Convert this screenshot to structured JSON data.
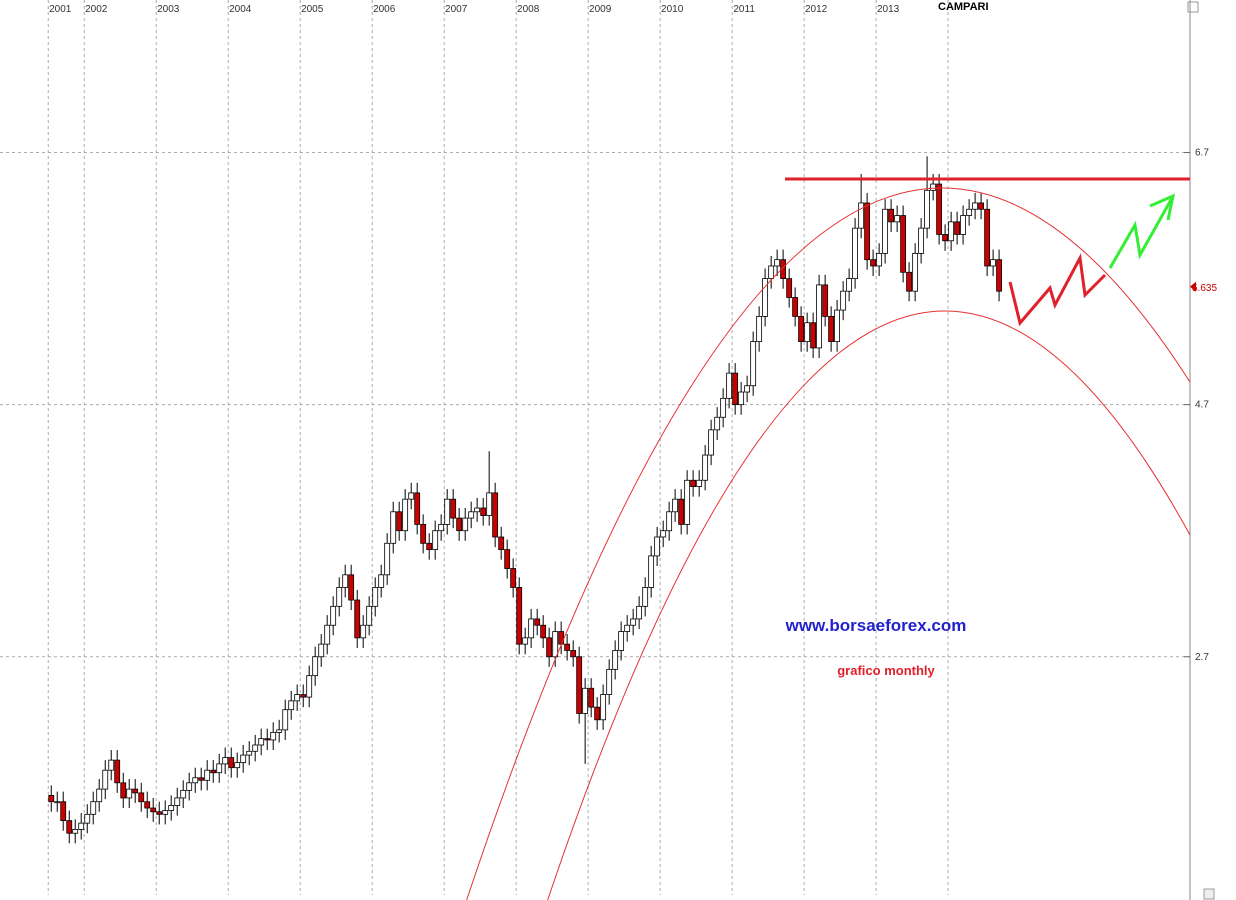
{
  "chart_data": {
    "type": "candlestick",
    "title": "CAMPARI",
    "annotations": [
      "www.borsaeforex.com",
      "grafico monthly"
    ],
    "xlim": [
      2000.83,
      2017.36
    ],
    "ylim": [
      0.81,
      7.91
    ],
    "xticks": [
      {
        "value": 2001.5,
        "label": "2001"
      },
      2002,
      2003,
      2004,
      2005,
      2006,
      2007,
      2008,
      2009,
      2010,
      2011,
      2012,
      2013
    ],
    "yticks": [
      2.7,
      4.7,
      6.7
    ],
    "last_price": 5.635,
    "grid": true,
    "up_color": "#ffffff",
    "down_color": "#cc0000",
    "x": [
      2001.542,
      2001.625,
      2001.708,
      2001.792,
      2001.875,
      2001.958,
      2002.042,
      2002.125,
      2002.208,
      2002.292,
      2002.375,
      2002.458,
      2002.542,
      2002.625,
      2002.708,
      2002.792,
      2002.875,
      2002.958,
      2003.042,
      2003.125,
      2003.208,
      2003.292,
      2003.375,
      2003.458,
      2003.542,
      2003.625,
      2003.708,
      2003.792,
      2003.875,
      2003.958,
      2004.042,
      2004.125,
      2004.208,
      2004.292,
      2004.375,
      2004.458,
      2004.542,
      2004.625,
      2004.708,
      2004.792,
      2004.875,
      2004.958,
      2005.042,
      2005.125,
      2005.208,
      2005.292,
      2005.375,
      2005.458,
      2005.542,
      2005.625,
      2005.708,
      2005.792,
      2005.875,
      2005.958,
      2006.042,
      2006.125,
      2006.208,
      2006.292,
      2006.375,
      2006.458,
      2006.542,
      2006.625,
      2006.708,
      2006.792,
      2006.875,
      2006.958,
      2007.042,
      2007.125,
      2007.208,
      2007.292,
      2007.375,
      2007.458,
      2007.542,
      2007.625,
      2007.708,
      2007.792,
      2007.875,
      2007.958,
      2008.042,
      2008.125,
      2008.208,
      2008.292,
      2008.375,
      2008.458,
      2008.542,
      2008.625,
      2008.708,
      2008.792,
      2008.875,
      2008.958,
      2009.042,
      2009.125,
      2009.208,
      2009.292,
      2009.375,
      2009.458,
      2009.542,
      2009.625,
      2009.708,
      2009.792,
      2009.875,
      2009.958,
      2010.042,
      2010.125,
      2010.208,
      2010.292,
      2010.375,
      2010.458,
      2010.542,
      2010.625,
      2010.708,
      2010.792,
      2010.875,
      2010.958,
      2011.042,
      2011.125,
      2011.208,
      2011.292,
      2011.375,
      2011.458,
      2011.542,
      2011.625,
      2011.708,
      2011.792,
      2011.875,
      2011.958,
      2012.042,
      2012.125,
      2012.208,
      2012.292,
      2012.375,
      2012.458,
      2012.542,
      2012.625,
      2012.708,
      2012.792,
      2012.875,
      2012.958,
      2013.042,
      2013.125,
      2013.208,
      2013.292,
      2013.375,
      2013.458,
      2013.542,
      2013.625,
      2013.708,
      2013.792,
      2013.875,
      2013.958,
      2014.042,
      2014.125,
      2014.208,
      2014.292,
      2014.375,
      2014.458,
      2014.542,
      2014.625,
      2014.708
    ],
    "open": [
      1.6,
      1.55,
      1.55,
      1.4,
      1.3,
      1.33,
      1.38,
      1.45,
      1.55,
      1.65,
      1.8,
      1.88,
      1.7,
      1.58,
      1.65,
      1.62,
      1.55,
      1.5,
      1.47,
      1.45,
      1.48,
      1.52,
      1.58,
      1.64,
      1.7,
      1.74,
      1.72,
      1.8,
      1.78,
      1.85,
      1.9,
      1.82,
      1.86,
      1.92,
      1.95,
      2.0,
      2.05,
      2.04,
      2.1,
      2.12,
      2.28,
      2.35,
      2.4,
      2.38,
      2.55,
      2.7,
      2.8,
      2.95,
      3.1,
      3.25,
      3.35,
      3.15,
      2.85,
      2.95,
      3.1,
      3.25,
      3.35,
      3.6,
      3.85,
      3.7,
      3.95,
      4.0,
      3.75,
      3.6,
      3.55,
      3.7,
      3.75,
      3.95,
      3.8,
      3.7,
      3.8,
      3.85,
      3.88,
      3.82,
      4.0,
      3.65,
      3.55,
      3.4,
      3.25,
      2.8,
      2.85,
      3.0,
      2.95,
      2.85,
      2.7,
      2.9,
      2.8,
      2.75,
      2.7,
      2.25,
      2.45,
      2.3,
      2.2,
      2.4,
      2.6,
      2.75,
      2.9,
      2.95,
      3.0,
      3.1,
      3.25,
      3.5,
      3.65,
      3.7,
      3.85,
      3.95,
      3.75,
      4.1,
      4.05,
      4.1,
      4.3,
      4.5,
      4.6,
      4.75,
      4.95,
      4.7,
      4.8,
      4.85,
      5.2,
      5.4,
      5.7,
      5.8,
      5.85,
      5.7,
      5.55,
      5.4,
      5.2,
      5.35,
      5.15,
      5.65,
      5.4,
      5.2,
      5.45,
      5.6,
      5.7,
      6.1,
      6.3,
      5.85,
      5.8,
      5.9,
      6.25,
      6.15,
      6.2,
      5.75,
      5.6,
      5.9,
      6.1,
      6.4,
      6.45,
      6.05,
      6.0,
      6.15,
      6.05,
      6.2,
      6.25,
      6.3,
      6.25,
      5.8,
      5.85
    ],
    "high": [
      1.68,
      1.63,
      1.63,
      1.48,
      1.41,
      1.46,
      1.53,
      1.63,
      1.73,
      1.88,
      1.96,
      1.96,
      1.78,
      1.73,
      1.73,
      1.7,
      1.63,
      1.58,
      1.55,
      1.56,
      1.6,
      1.66,
      1.72,
      1.78,
      1.82,
      1.82,
      1.88,
      1.88,
      1.93,
      1.98,
      1.98,
      1.94,
      2.0,
      2.03,
      2.08,
      2.13,
      2.13,
      2.18,
      2.2,
      2.36,
      2.43,
      2.48,
      2.48,
      2.63,
      2.78,
      2.88,
      3.03,
      3.18,
      3.33,
      3.43,
      3.43,
      3.23,
      3.03,
      3.18,
      3.33,
      3.43,
      3.68,
      3.93,
      3.93,
      4.03,
      4.08,
      4.08,
      3.83,
      3.68,
      3.78,
      3.83,
      4.03,
      4.03,
      3.88,
      3.88,
      3.93,
      3.96,
      3.96,
      4.33,
      4.08,
      3.73,
      3.63,
      3.48,
      3.33,
      2.93,
      3.08,
      3.08,
      3.03,
      2.93,
      2.98,
      2.98,
      2.88,
      2.83,
      2.78,
      2.53,
      2.53,
      2.38,
      2.48,
      2.68,
      2.83,
      2.98,
      3.03,
      3.08,
      3.18,
      3.33,
      3.58,
      3.73,
      3.78,
      3.93,
      4.03,
      4.03,
      4.18,
      4.18,
      4.18,
      4.38,
      4.58,
      4.68,
      4.83,
      5.03,
      5.03,
      4.88,
      4.93,
      5.28,
      5.48,
      5.78,
      5.88,
      5.93,
      5.93,
      5.78,
      5.63,
      5.48,
      5.43,
      5.43,
      5.73,
      5.73,
      5.48,
      5.53,
      5.68,
      5.78,
      6.18,
      6.53,
      6.38,
      5.93,
      5.98,
      6.33,
      6.33,
      6.28,
      6.28,
      5.83,
      5.98,
      6.18,
      6.67,
      6.53,
      6.53,
      6.13,
      6.23,
      6.23,
      6.28,
      6.33,
      6.38,
      6.38,
      6.33,
      5.93,
      5.93
    ],
    "low": [
      1.47,
      1.47,
      1.32,
      1.22,
      1.22,
      1.25,
      1.3,
      1.37,
      1.47,
      1.57,
      1.72,
      1.62,
      1.5,
      1.5,
      1.54,
      1.47,
      1.42,
      1.39,
      1.37,
      1.37,
      1.4,
      1.44,
      1.5,
      1.56,
      1.62,
      1.64,
      1.64,
      1.7,
      1.7,
      1.77,
      1.74,
      1.74,
      1.78,
      1.84,
      1.87,
      1.92,
      1.96,
      1.96,
      2.02,
      2.04,
      2.2,
      2.27,
      2.3,
      2.3,
      2.47,
      2.62,
      2.72,
      2.87,
      3.02,
      3.17,
      3.07,
      2.77,
      2.77,
      2.87,
      3.02,
      3.17,
      3.27,
      3.52,
      3.62,
      3.62,
      3.87,
      3.67,
      3.52,
      3.47,
      3.47,
      3.62,
      3.67,
      3.72,
      3.62,
      3.62,
      3.72,
      3.77,
      3.74,
      3.74,
      3.57,
      3.47,
      3.32,
      3.17,
      2.72,
      2.72,
      2.77,
      2.87,
      2.77,
      2.62,
      2.62,
      2.72,
      2.67,
      2.62,
      2.17,
      1.85,
      2.22,
      2.12,
      2.12,
      2.32,
      2.52,
      2.67,
      2.82,
      2.87,
      2.92,
      3.02,
      3.17,
      3.42,
      3.57,
      3.62,
      3.77,
      3.67,
      3.67,
      3.97,
      3.97,
      4.02,
      4.22,
      4.42,
      4.52,
      4.67,
      4.62,
      4.62,
      4.72,
      4.77,
      5.12,
      5.32,
      5.62,
      5.72,
      5.62,
      5.47,
      5.32,
      5.12,
      5.12,
      5.07,
      5.07,
      5.32,
      5.12,
      5.12,
      5.37,
      5.52,
      5.62,
      6.02,
      5.77,
      5.72,
      5.72,
      5.82,
      6.07,
      6.07,
      5.67,
      5.52,
      5.52,
      5.82,
      6.02,
      6.32,
      5.97,
      5.92,
      5.92,
      5.97,
      5.97,
      6.12,
      6.17,
      6.17,
      5.72,
      5.72,
      5.52
    ],
    "close": [
      1.55,
      1.55,
      1.4,
      1.3,
      1.33,
      1.38,
      1.45,
      1.55,
      1.65,
      1.8,
      1.88,
      1.7,
      1.58,
      1.65,
      1.62,
      1.55,
      1.5,
      1.47,
      1.45,
      1.48,
      1.52,
      1.58,
      1.64,
      1.7,
      1.74,
      1.72,
      1.8,
      1.78,
      1.85,
      1.9,
      1.82,
      1.86,
      1.92,
      1.95,
      2.0,
      2.05,
      2.04,
      2.1,
      2.12,
      2.28,
      2.35,
      2.4,
      2.38,
      2.55,
      2.7,
      2.8,
      2.95,
      3.1,
      3.25,
      3.35,
      3.15,
      2.85,
      2.95,
      3.1,
      3.25,
      3.35,
      3.6,
      3.85,
      3.7,
      3.95,
      4.0,
      3.75,
      3.6,
      3.55,
      3.7,
      3.75,
      3.95,
      3.8,
      3.7,
      3.8,
      3.85,
      3.88,
      3.82,
      4.0,
      3.65,
      3.55,
      3.4,
      3.25,
      2.8,
      2.85,
      3.0,
      2.95,
      2.85,
      2.7,
      2.9,
      2.8,
      2.75,
      2.7,
      2.25,
      2.45,
      2.3,
      2.2,
      2.4,
      2.6,
      2.75,
      2.9,
      2.95,
      3.0,
      3.1,
      3.25,
      3.5,
      3.65,
      3.7,
      3.85,
      3.95,
      3.75,
      4.1,
      4.05,
      4.1,
      4.3,
      4.5,
      4.6,
      4.75,
      4.95,
      4.7,
      4.8,
      4.85,
      5.2,
      5.4,
      5.7,
      5.8,
      5.85,
      5.7,
      5.55,
      5.4,
      5.2,
      5.35,
      5.15,
      5.65,
      5.4,
      5.2,
      5.45,
      5.6,
      5.7,
      6.1,
      6.3,
      5.85,
      5.8,
      5.9,
      6.25,
      6.15,
      6.2,
      5.75,
      5.6,
      5.9,
      6.1,
      6.4,
      6.45,
      6.05,
      6.0,
      6.15,
      6.05,
      6.2,
      6.25,
      6.3,
      6.25,
      5.8,
      5.85,
      5.6
    ]
  }
}
